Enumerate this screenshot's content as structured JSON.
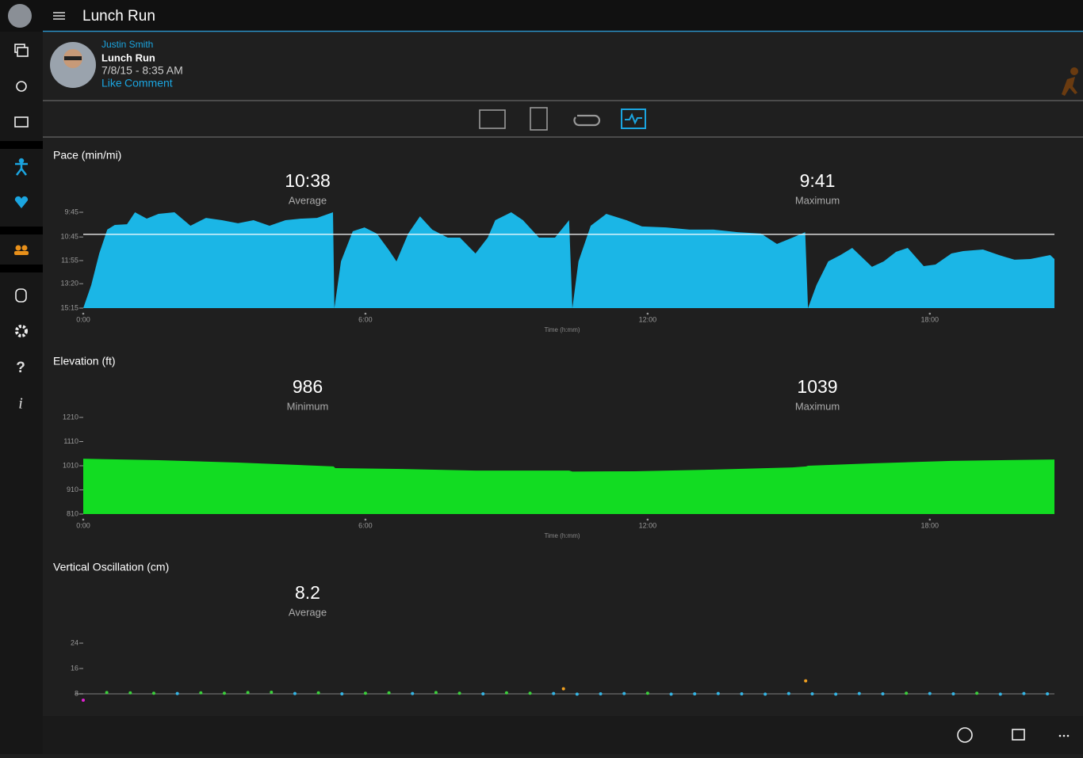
{
  "header": {
    "title": "Lunch Run"
  },
  "activity": {
    "athlete": "Justin Smith",
    "name": "Lunch Run",
    "date": "7/8/15 - 8:35 AM",
    "actions": [
      "Like",
      "Comment"
    ]
  },
  "chart_data": [
    {
      "type": "area",
      "title": "Pace (min/mi)",
      "scale": "reciprocal",
      "color": "#1bb6e6",
      "reference_line": true,
      "stats": [
        {
          "value": 10.633,
          "label": "10:38",
          "caption": "Average"
        },
        {
          "value": 9.683,
          "label": "9:41",
          "caption": "Maximum"
        }
      ],
      "xlabel": "Time (h:mm)",
      "xlim": [
        0,
        20.65
      ],
      "xticks": [
        {
          "value": 0,
          "label": "0:00"
        },
        {
          "value": 6,
          "label": "6:00"
        },
        {
          "value": 12,
          "label": "12:00"
        },
        {
          "value": 18,
          "label": "18:00"
        }
      ],
      "ylim": [
        15.25,
        9.75
      ],
      "yticks": [
        {
          "value": 9.75,
          "label": "9:45"
        },
        {
          "value": 10.75,
          "label": "10:45"
        },
        {
          "value": 11.917,
          "label": "11:55"
        },
        {
          "value": 13.333,
          "label": "13:20"
        },
        {
          "value": 15.25,
          "label": "15:15"
        }
      ],
      "x": [
        0,
        0.17,
        0.34,
        0.51,
        0.67,
        0.93,
        1.1,
        1.35,
        1.6,
        1.94,
        2.28,
        2.61,
        2.95,
        3.29,
        3.62,
        3.96,
        4.3,
        4.63,
        4.97,
        5.31,
        5.34,
        5.48,
        5.73,
        5.98,
        6.24,
        6.49,
        6.66,
        6.91,
        7.16,
        7.42,
        7.75,
        8.01,
        8.34,
        8.6,
        8.76,
        9.1,
        9.35,
        9.69,
        10.03,
        10.33,
        10.4,
        10.53,
        10.79,
        11.12,
        11.55,
        11.88,
        12.39,
        12.89,
        13.4,
        13.91,
        14.41,
        14.75,
        15.08,
        15.35,
        15.41,
        15.59,
        15.84,
        16.1,
        16.35,
        16.77,
        17.02,
        17.28,
        17.53,
        17.87,
        18.12,
        18.46,
        18.71,
        19.13,
        19.47,
        19.8,
        20.14,
        20.56,
        20.65
      ],
      "values": [
        15.25,
        13.43,
        11.54,
        10.43,
        10.24,
        10.21,
        9.75,
        9.99,
        9.81,
        9.75,
        10.27,
        9.96,
        10.05,
        10.17,
        10.05,
        10.27,
        10.05,
        9.99,
        9.96,
        9.75,
        15.25,
        11.96,
        10.5,
        10.34,
        10.6,
        11.34,
        11.96,
        10.6,
        9.9,
        10.43,
        10.78,
        10.78,
        11.54,
        10.78,
        10.05,
        9.75,
        10.05,
        10.78,
        10.78,
        10.05,
        15.25,
        11.96,
        10.27,
        9.81,
        10.05,
        10.3,
        10.34,
        10.43,
        10.43,
        10.54,
        10.6,
        11.07,
        10.78,
        10.54,
        15.25,
        13.43,
        11.96,
        11.62,
        11.26,
        12.27,
        11.96,
        11.46,
        11.26,
        12.23,
        12.14,
        11.54,
        11.42,
        11.34,
        11.62,
        11.87,
        11.83,
        11.62,
        11.83
      ]
    },
    {
      "type": "area",
      "title": "Elevation (ft)",
      "color": "#12dc22",
      "stats": [
        {
          "value": 986,
          "caption": "Minimum"
        },
        {
          "value": 1039,
          "caption": "Maximum"
        }
      ],
      "xlabel": "Time (h:mm)",
      "xlim": [
        0,
        20.65
      ],
      "xticks": [
        {
          "value": 0,
          "label": "0:00"
        },
        {
          "value": 6,
          "label": "6:00"
        },
        {
          "value": 12,
          "label": "12:00"
        },
        {
          "value": 18,
          "label": "18:00"
        }
      ],
      "ylim": [
        810,
        1210
      ],
      "yticks": [
        810,
        910,
        1010,
        1110,
        1210
      ],
      "x": [
        0,
        1.6,
        3.29,
        4.97,
        5.32,
        5.36,
        6.66,
        8.34,
        10.33,
        10.4,
        11.72,
        13.4,
        15.08,
        15.37,
        15.41,
        16.77,
        18.46,
        20.65
      ],
      "values": [
        1039,
        1033,
        1023,
        1010,
        1007,
        1000,
        997,
        990,
        990,
        986,
        987,
        994,
        1003,
        1007,
        1010,
        1020,
        1030,
        1036
      ]
    },
    {
      "type": "scatter",
      "title": "Vertical Oscillation (cm)",
      "stats": [
        {
          "value": 8.2,
          "caption": "Average"
        }
      ],
      "xlim": [
        0,
        20.65
      ],
      "ylim": [
        5,
        26
      ],
      "yticks": [
        8,
        16,
        24
      ],
      "x": [
        0,
        0.5,
        1,
        1.5,
        2,
        2.5,
        3,
        3.5,
        4,
        4.5,
        5,
        5.5,
        6,
        6.5,
        7,
        7.5,
        8,
        8.5,
        9,
        9.5,
        10,
        10.21,
        10.5,
        11,
        11.5,
        12,
        12.5,
        13,
        13.5,
        14,
        14.5,
        15,
        15.36,
        15.5,
        16,
        16.5,
        17,
        17.5,
        18,
        18.5,
        19,
        19.5,
        20,
        20.5
      ],
      "values": [
        6,
        8.4,
        8.3,
        8.2,
        8.1,
        8.3,
        8.2,
        8.4,
        8.5,
        8.1,
        8.3,
        8.0,
        8.2,
        8.3,
        8.1,
        8.4,
        8.2,
        8.0,
        8.3,
        8.2,
        8.1,
        9.6,
        7.9,
        8.0,
        8.1,
        8.2,
        7.9,
        8.0,
        8.1,
        8.0,
        7.9,
        8.1,
        12.1,
        8.0,
        7.9,
        8.1,
        8.0,
        8.2,
        8.1,
        8.0,
        8.2,
        7.9,
        8.1,
        8.0
      ],
      "colors": [
        "#e020d0",
        "#3ccf3c",
        "#3ccf3c",
        "#3ccf3c",
        "#35b6e6",
        "#3ccf3c",
        "#3ccf3c",
        "#3ccf3c",
        "#3ccf3c",
        "#35b6e6",
        "#3ccf3c",
        "#35b6e6",
        "#3ccf3c",
        "#3ccf3c",
        "#35b6e6",
        "#3ccf3c",
        "#3ccf3c",
        "#35b6e6",
        "#3ccf3c",
        "#3ccf3c",
        "#35b6e6",
        "#f0a020",
        "#35b6e6",
        "#35b6e6",
        "#35b6e6",
        "#3ccf3c",
        "#35b6e6",
        "#35b6e6",
        "#35b6e6",
        "#35b6e6",
        "#35b6e6",
        "#35b6e6",
        "#f0a020",
        "#35b6e6",
        "#35b6e6",
        "#35b6e6",
        "#35b6e6",
        "#3ccf3c",
        "#35b6e6",
        "#35b6e6",
        "#3ccf3c",
        "#35b6e6",
        "#35b6e6",
        "#35b6e6"
      ]
    }
  ]
}
